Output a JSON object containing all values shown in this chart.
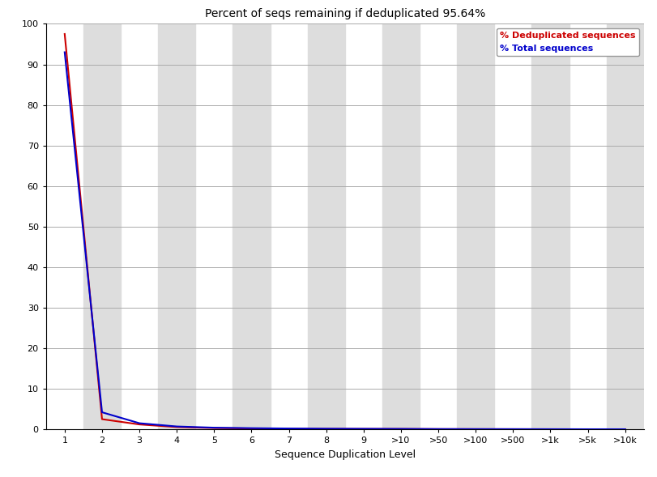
{
  "title": "Percent of seqs remaining if deduplicated 95.64%",
  "xlabel": "Sequence Duplication Level",
  "x_labels": [
    "1",
    "2",
    "3",
    "4",
    "5",
    "6",
    "7",
    "8",
    "9",
    ">10",
    ">50",
    ">100",
    ">500",
    ">1k",
    ">5k",
    ">10k"
  ],
  "dedup_values": [
    97.5,
    2.5,
    1.2,
    0.55,
    0.3,
    0.2,
    0.15,
    0.12,
    0.1,
    0.09,
    0.05,
    0.04,
    0.03,
    0.02,
    0.01,
    0.01
  ],
  "total_values": [
    93.0,
    4.2,
    1.5,
    0.7,
    0.4,
    0.28,
    0.2,
    0.15,
    0.12,
    0.1,
    0.06,
    0.05,
    0.04,
    0.03,
    0.02,
    0.02
  ],
  "dedup_color": "#cc0000",
  "total_color": "#0000cc",
  "ylim": [
    0,
    100
  ],
  "yticks": [
    0,
    10,
    20,
    30,
    40,
    50,
    60,
    70,
    80,
    90,
    100
  ],
  "bg_color": "#ffffff",
  "stripe_color": "#dddddd",
  "grid_color": "#aaaaaa",
  "title_fontsize": 10,
  "axis_label_fontsize": 9,
  "tick_fontsize": 8,
  "legend_dedup_label": "% Deduplicated sequences",
  "legend_total_label": "% Total sequences"
}
